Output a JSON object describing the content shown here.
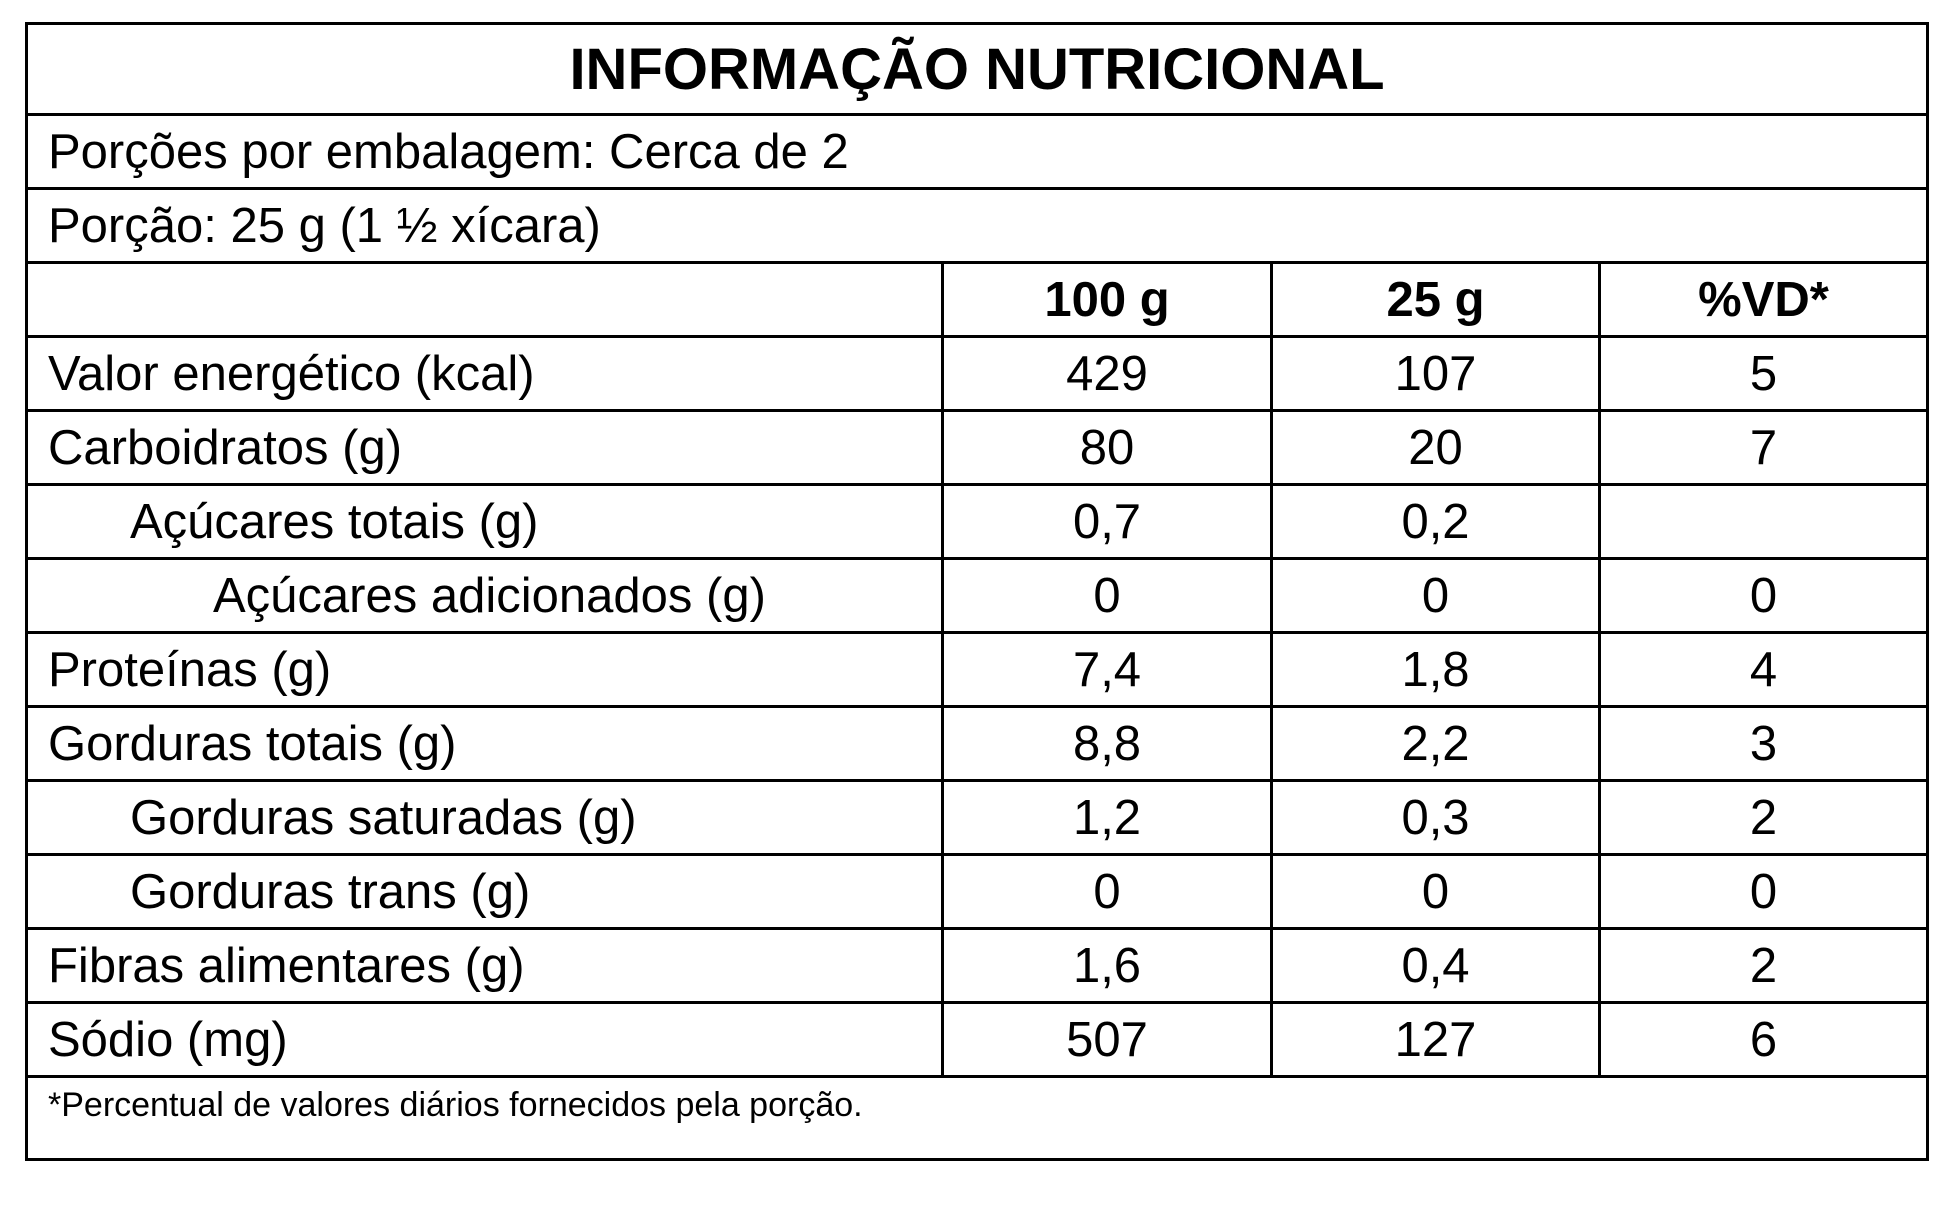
{
  "title": "INFORMAÇÃO NUTRICIONAL",
  "servings_per_package": "Porções por embalagem: Cerca de 2",
  "serving_size": "Porção: 25 g (1 ½ xícara)",
  "columns": [
    "100 g",
    "25 g",
    "%VD*"
  ],
  "rows": [
    {
      "label": "Valor energético (kcal)",
      "g100": "429",
      "g25": "107",
      "vd": "5"
    },
    {
      "label": "Carboidratos (g)",
      "g100": "80",
      "g25": "20",
      "vd": "7"
    },
    {
      "label": "Açúcares totais (g)",
      "g100": "0,7",
      "g25": "0,2"
    },
    {
      "label": "Açúcares adicionados (g)",
      "g100": "0",
      "g25": "0",
      "vd": "0"
    },
    {
      "label": "Proteínas (g)",
      "g100": "7,4",
      "g25": "1,8",
      "vd": "4"
    },
    {
      "label": "Gorduras totais (g)",
      "g100": "8,8",
      "g25": "2,2",
      "vd": "3"
    },
    {
      "label": "Gorduras saturadas (g)",
      "g100": "1,2",
      "g25": "0,3",
      "vd": "2"
    },
    {
      "label": "Gorduras trans (g)",
      "g100": "0",
      "g25": "0",
      "vd": "0"
    },
    {
      "label": "Fibras alimentares (g)",
      "g100": "1,6",
      "g25": "0,4",
      "vd": "2"
    },
    {
      "label": "Sódio (mg)",
      "g100": "507",
      "g25": "127",
      "vd": "6"
    }
  ],
  "footnote": "*Percentual de valores diários fornecidos pela porção."
}
